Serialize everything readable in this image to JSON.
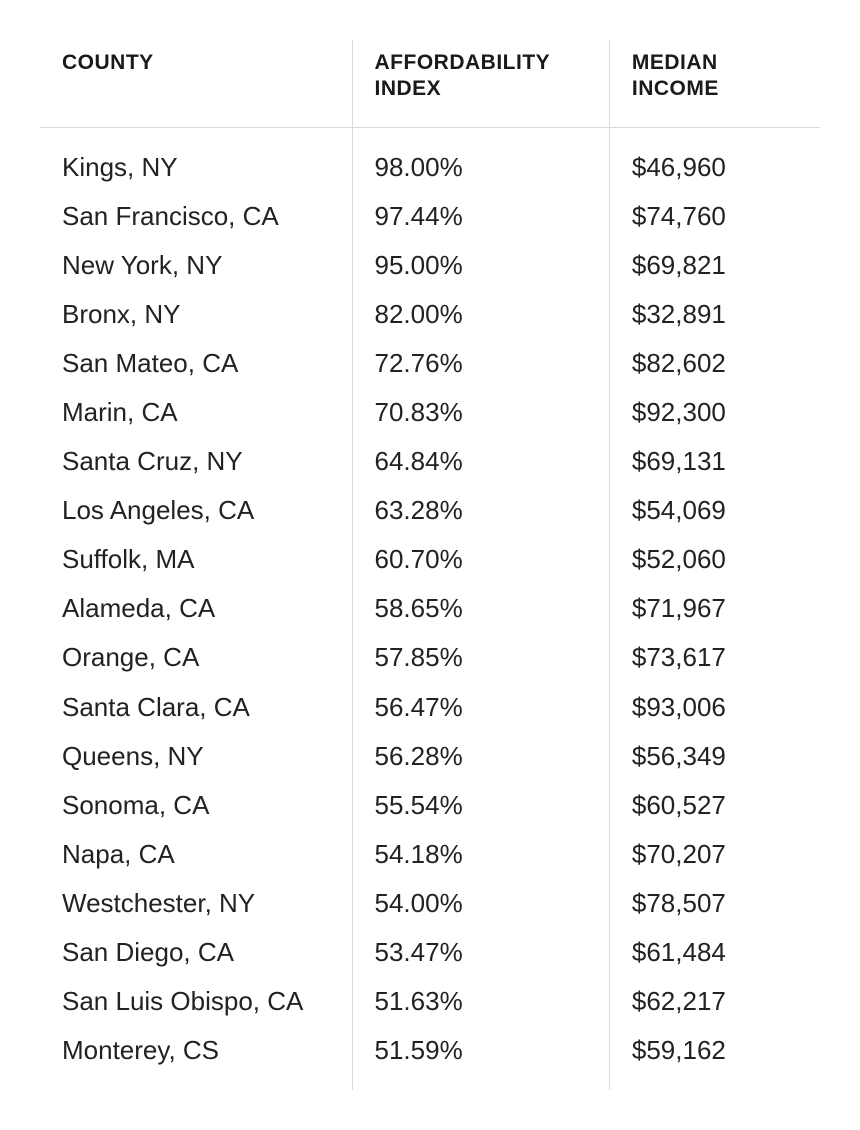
{
  "table": {
    "type": "table",
    "background_color": "#ffffff",
    "border_color": "#d9d9d9",
    "header_fontsize": 21,
    "header_fontweight": 700,
    "body_fontsize": 26,
    "body_fontweight": 400,
    "text_color": "#1a1a1a",
    "column_widths_pct": [
      40,
      33,
      27
    ],
    "columns": [
      "COUNTY",
      "AFFORDABILITY INDEX",
      "MEDIAN INCOME"
    ],
    "rows": [
      {
        "county": "Kings, NY",
        "affordability": "98.00%",
        "median_income": "$46,960"
      },
      {
        "county": "San Francisco, CA",
        "affordability": "97.44%",
        "median_income": "$74,760"
      },
      {
        "county": "New York, NY",
        "affordability": "95.00%",
        "median_income": "$69,821"
      },
      {
        "county": "Bronx, NY",
        "affordability": "82.00%",
        "median_income": "$32,891"
      },
      {
        "county": "San Mateo, CA",
        "affordability": "72.76%",
        "median_income": "$82,602"
      },
      {
        "county": "Marin, CA",
        "affordability": "70.83%",
        "median_income": "$92,300"
      },
      {
        "county": "Santa Cruz, NY",
        "affordability": "64.84%",
        "median_income": "$69,131"
      },
      {
        "county": "Los Angeles, CA",
        "affordability": "63.28%",
        "median_income": "$54,069"
      },
      {
        "county": "Suffolk, MA",
        "affordability": "60.70%",
        "median_income": "$52,060"
      },
      {
        "county": "Alameda, CA",
        "affordability": "58.65%",
        "median_income": "$71,967"
      },
      {
        "county": "Orange, CA",
        "affordability": "57.85%",
        "median_income": "$73,617"
      },
      {
        "county": "Santa Clara, CA",
        "affordability": "56.47%",
        "median_income": "$93,006"
      },
      {
        "county": "Queens, NY",
        "affordability": "56.28%",
        "median_income": "$56,349"
      },
      {
        "county": "Sonoma, CA",
        "affordability": "55.54%",
        "median_income": "$60,527"
      },
      {
        "county": "Napa, CA",
        "affordability": "54.18%",
        "median_income": "$70,207"
      },
      {
        "county": "Westchester, NY",
        "affordability": "54.00%",
        "median_income": "$78,507"
      },
      {
        "county": "San Diego, CA",
        "affordability": "53.47%",
        "median_income": "$61,484"
      },
      {
        "county": "San Luis Obispo, CA",
        "affordability": "51.63%",
        "median_income": "$62,217"
      },
      {
        "county": "Monterey, CS",
        "affordability": "51.59%",
        "median_income": "$59,162"
      }
    ]
  }
}
